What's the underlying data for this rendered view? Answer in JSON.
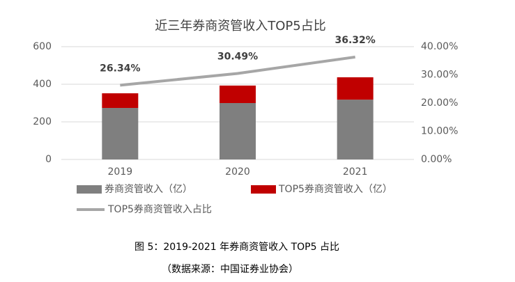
{
  "chart_data": {
    "type": "bar",
    "stacked": true,
    "title": "近三年券商资管收入TOP5占比",
    "categories": [
      "2019",
      "2020",
      "2021"
    ],
    "series": [
      {
        "name": "券商资管收入（亿）",
        "color": "#7f7f7f",
        "values": [
          274,
          300,
          318
        ]
      },
      {
        "name": "TOP5券商资管收入（亿）",
        "color": "#c00000",
        "values": [
          78,
          93,
          119
        ]
      },
      {
        "name": "TOP5券商资管收入占比",
        "type": "line",
        "axis": "y2",
        "color": "#a6a6a6",
        "values": [
          26.34,
          30.49,
          36.32
        ],
        "value_labels": [
          "26.34%",
          "30.49%",
          "36.32%"
        ]
      }
    ],
    "ylim": [
      0,
      600
    ],
    "yticks": [
      0,
      200,
      400,
      600
    ],
    "y2lim": [
      0,
      40
    ],
    "y2ticks": [
      {
        "value": 0,
        "label": "0.00%"
      },
      {
        "value": 10,
        "label": "10.00%"
      },
      {
        "value": 20,
        "label": "20.00%"
      },
      {
        "value": 30,
        "label": "30.00%"
      },
      {
        "value": 40,
        "label": "40.00%"
      }
    ],
    "grid": true
  },
  "caption": {
    "figure": "图 5：2019-2021 年券商资管收入 TOP5 占比",
    "source": "（数据来源：中国证券业协会）"
  }
}
